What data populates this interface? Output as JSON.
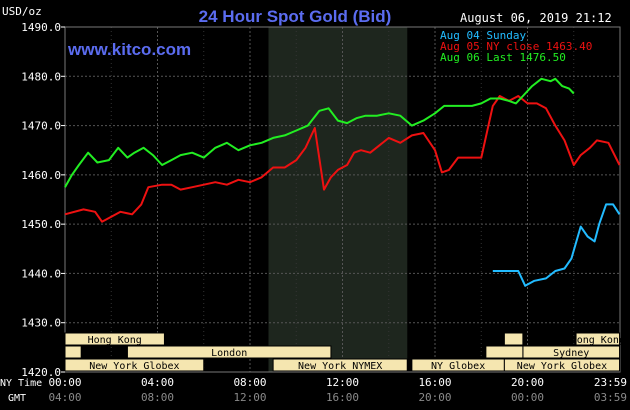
{
  "header": {
    "title": "24 Hour Spot Gold (Bid)",
    "unit": "USD/oz",
    "datetime": "August 06, 2019 21:12",
    "watermark": "www.kitco.com"
  },
  "colors": {
    "background": "#000000",
    "title": "#5b6cf0",
    "grid": "#555555",
    "axis_text": "#ffffff",
    "green": "#22ee22",
    "red": "#ee1111",
    "blue": "#22bbff",
    "session_fill": "#f5e6b0",
    "nymex_shade": "#1e261e"
  },
  "chart_data": {
    "type": "line",
    "title": "24 Hour Spot Gold (Bid)",
    "ylabel": "USD/oz",
    "ylim": [
      1420,
      1490
    ],
    "yticks": [
      "1490.0",
      "1480.0",
      "1470.0",
      "1460.0",
      "1450.0",
      "1440.0",
      "1430.0",
      "1420.0"
    ],
    "ytick_values": [
      1490,
      1480,
      1470,
      1460,
      1450,
      1440,
      1430,
      1420
    ],
    "xlim": [
      0,
      24
    ],
    "x_unit": "hours (NY time)",
    "x_ny_labels": [
      "00:00",
      "04:00",
      "08:00",
      "12:00",
      "16:00",
      "20:00",
      "23:59"
    ],
    "x_gmt_labels": [
      "04:00",
      "08:00",
      "12:00",
      "16:00",
      "20:00",
      "00:00",
      "03:59"
    ],
    "x_label_positions": [
      0,
      4,
      8,
      12,
      16,
      20,
      23.98
    ],
    "x_row_labels": {
      "ny": "NY Time",
      "gmt": "GMT"
    },
    "nymex_shade": [
      8.8,
      14.8
    ],
    "grid": true,
    "legend_position": "top-right",
    "legend": [
      {
        "label": "Aug 04 Sunday",
        "color": "#22bbff"
      },
      {
        "label": "Aug 05 NY close 1463.40",
        "color": "#ee1111"
      },
      {
        "label": "Aug 06 Last 1476.50",
        "color": "#22ee22"
      }
    ],
    "series": [
      {
        "name": "Aug 04 Sunday",
        "color": "#22bbff",
        "x": [
          18.5,
          19.2,
          19.6,
          19.9,
          20.3,
          20.8,
          21.2,
          21.6,
          21.9,
          22.3,
          22.6,
          22.9,
          23.1,
          23.4,
          23.7,
          23.98
        ],
        "y": [
          1440.5,
          1440.5,
          1440.5,
          1437.5,
          1438.5,
          1439.0,
          1440.5,
          1441.0,
          1443.0,
          1449.5,
          1447.5,
          1446.5,
          1450.0,
          1454.0,
          1454.0,
          1452.0
        ]
      },
      {
        "name": "Aug 05 NY close 1463.40",
        "color": "#ee1111",
        "x": [
          0,
          0.8,
          1.3,
          1.6,
          2.0,
          2.4,
          2.9,
          3.3,
          3.6,
          4.2,
          4.6,
          5.0,
          5.5,
          6.0,
          6.5,
          7.0,
          7.5,
          8.0,
          8.5,
          9.0,
          9.5,
          10.0,
          10.4,
          10.8,
          11.2,
          11.5,
          11.8,
          12.2,
          12.5,
          12.8,
          13.2,
          13.6,
          14.0,
          14.5,
          15.0,
          15.5,
          16.0,
          16.3,
          16.6,
          17.0,
          17.5,
          18.0,
          18.5,
          18.8,
          19.2,
          19.6,
          20.0,
          20.4,
          20.8,
          21.2,
          21.6,
          22.0,
          22.3,
          22.7,
          23.0,
          23.5,
          23.98
        ],
        "y": [
          1452.0,
          1453.0,
          1452.5,
          1450.5,
          1451.5,
          1452.5,
          1452.0,
          1454.0,
          1457.5,
          1458.0,
          1458.0,
          1457.0,
          1457.5,
          1458.0,
          1458.5,
          1458.0,
          1459.0,
          1458.5,
          1459.5,
          1461.5,
          1461.5,
          1463.0,
          1465.5,
          1469.5,
          1457.0,
          1459.5,
          1461.0,
          1462.0,
          1464.5,
          1465.0,
          1464.5,
          1466.0,
          1467.5,
          1466.5,
          1468.0,
          1468.5,
          1465.0,
          1460.5,
          1461.0,
          1463.5,
          1463.5,
          1463.5,
          1474.0,
          1476.0,
          1475.0,
          1476.0,
          1474.5,
          1474.5,
          1473.5,
          1470.0,
          1467.0,
          1462.0,
          1464.0,
          1465.5,
          1467.0,
          1466.5,
          1462.0
        ]
      },
      {
        "name": "Aug 06 Last 1476.50",
        "color": "#22ee22",
        "x": [
          0,
          0.3,
          0.6,
          1.0,
          1.4,
          1.9,
          2.3,
          2.7,
          3.0,
          3.4,
          3.8,
          4.2,
          4.6,
          5.0,
          5.5,
          6.0,
          6.5,
          7.0,
          7.5,
          8.0,
          8.5,
          9.0,
          9.5,
          10.0,
          10.5,
          11.0,
          11.4,
          11.8,
          12.2,
          12.6,
          13.0,
          13.5,
          14.0,
          14.5,
          15.0,
          15.5,
          16.0,
          16.4,
          16.8,
          17.2,
          17.6,
          18.0,
          18.4,
          18.8,
          19.2,
          19.5,
          19.8,
          20.2,
          20.6,
          21.0,
          21.2,
          21.5,
          21.8,
          22.0
        ],
        "y": [
          1457.5,
          1460.0,
          1462.0,
          1464.5,
          1462.5,
          1463.0,
          1465.5,
          1463.5,
          1464.5,
          1465.5,
          1464.0,
          1462.0,
          1463.0,
          1464.0,
          1464.5,
          1463.5,
          1465.5,
          1466.5,
          1465.0,
          1466.0,
          1466.5,
          1467.5,
          1468.0,
          1469.0,
          1470.0,
          1473.0,
          1473.5,
          1471.0,
          1470.5,
          1471.5,
          1472.0,
          1472.0,
          1472.5,
          1472.0,
          1470.0,
          1471.0,
          1472.5,
          1474.0,
          1474.0,
          1474.0,
          1474.0,
          1474.5,
          1475.5,
          1475.5,
          1475.0,
          1474.5,
          1476.0,
          1478.0,
          1479.5,
          1479.0,
          1479.5,
          1478.0,
          1477.5,
          1476.5
        ]
      }
    ],
    "sessions": [
      {
        "label": "Hong Kong",
        "start": 0,
        "end": 4.3,
        "row": 1
      },
      {
        "label": "",
        "start": 0,
        "end": 0.7,
        "row": 2
      },
      {
        "label": "London",
        "start": 2.7,
        "end": 11.5,
        "row": 2
      },
      {
        "label": "New York Globex",
        "start": 0,
        "end": 6.0,
        "row": 3
      },
      {
        "label": "New York NYMEX",
        "start": 9.0,
        "end": 14.8,
        "row": 3
      },
      {
        "label": "NY Globex",
        "start": 15.0,
        "end": 19.0,
        "row": 3
      },
      {
        "label": "Hong Kong",
        "start": 22.1,
        "end": 23.98,
        "row": 1
      },
      {
        "label": "",
        "start": 19.0,
        "end": 19.8,
        "row": 1
      },
      {
        "label": "Sydney",
        "start": 19.8,
        "end": 23.98,
        "row": 2
      },
      {
        "label": "",
        "start": 18.2,
        "end": 19.8,
        "row": 2
      },
      {
        "label": "New York Globex",
        "start": 19.0,
        "end": 23.98,
        "row": 3
      }
    ]
  }
}
